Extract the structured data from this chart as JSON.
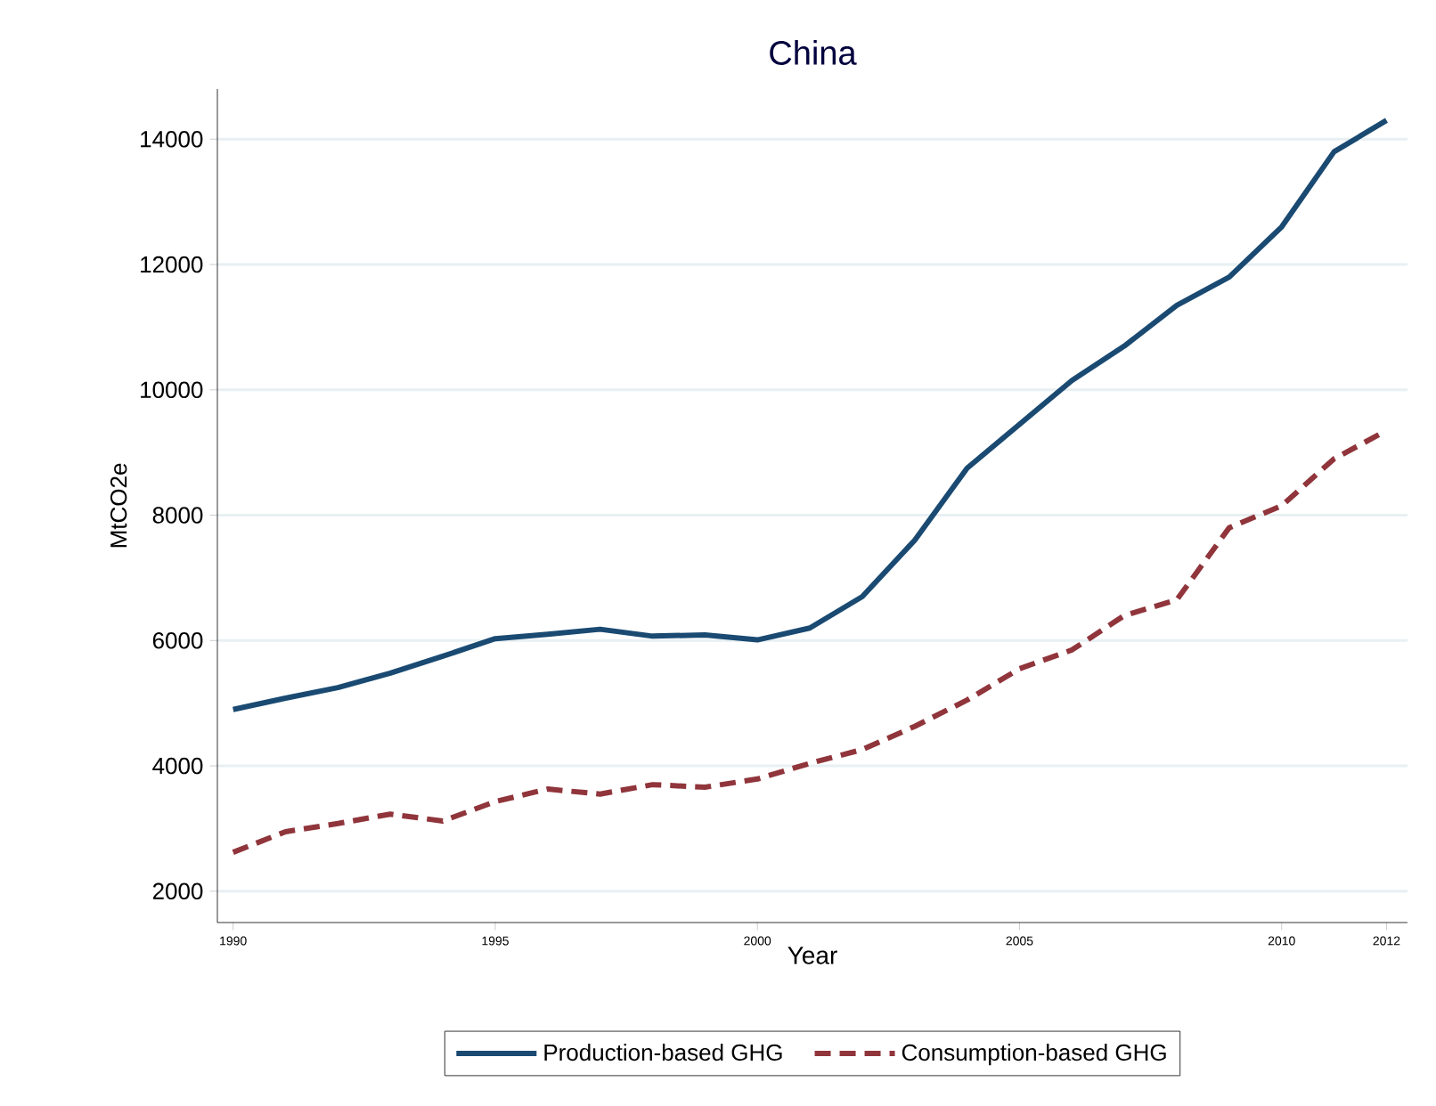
{
  "chart_data": {
    "type": "line",
    "title": "China",
    "xlabel": "Year",
    "ylabel": "MtCO2e",
    "x": [
      1990,
      1991,
      1992,
      1993,
      1994,
      1995,
      1996,
      1997,
      1998,
      1999,
      2000,
      2001,
      2002,
      2003,
      2004,
      2005,
      2006,
      2007,
      2008,
      2009,
      2010,
      2011,
      2012
    ],
    "series": [
      {
        "name": "Production-based GHG",
        "color": "#1a4a72",
        "line_style": "solid",
        "values": [
          4900,
          5080,
          5250,
          5480,
          5750,
          6030,
          6100,
          6180,
          6070,
          6090,
          6010,
          6200,
          6700,
          7600,
          8750,
          9450,
          10150,
          10700,
          11350,
          11800,
          12600,
          13800,
          14300
        ]
      },
      {
        "name": "Consumption-based GHG",
        "color": "#90353b",
        "line_style": "dashed",
        "values": [
          2620,
          2950,
          3080,
          3230,
          3120,
          3430,
          3630,
          3550,
          3700,
          3660,
          3790,
          4040,
          4260,
          4630,
          5050,
          5550,
          5850,
          6400,
          6650,
          7800,
          8150,
          8900,
          9350
        ]
      }
    ],
    "xlim": [
      1989.7,
      2012.4
    ],
    "ylim": [
      1500,
      14800
    ],
    "xticks": [
      1990,
      1995,
      2000,
      2005,
      2010,
      2012
    ],
    "yticks": [
      2000,
      4000,
      6000,
      8000,
      10000,
      12000,
      14000
    ],
    "grid": "y",
    "legend": "bottom",
    "marker": "none"
  }
}
